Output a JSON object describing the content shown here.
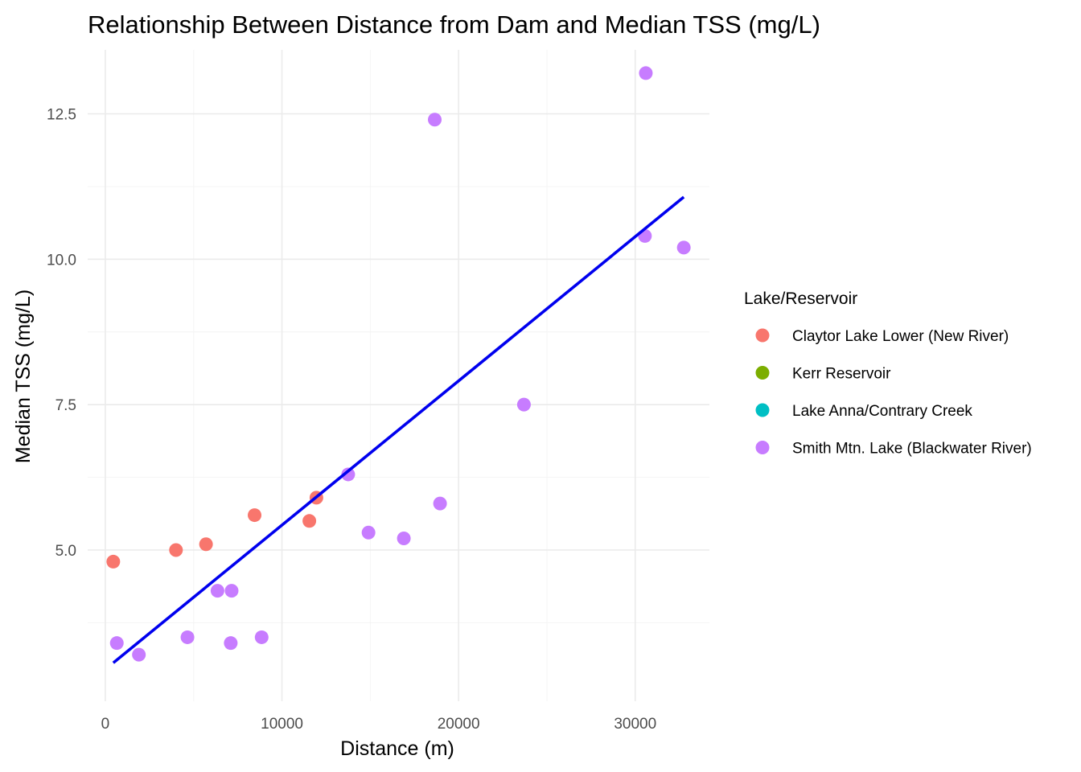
{
  "chart_data": {
    "type": "scatter",
    "title": "Relationship Between Distance from Dam and Median TSS (mg/L)",
    "xlabel": "Distance (m)",
    "ylabel": "Median TSS (mg/L)",
    "xlim": [
      -1000,
      34200
    ],
    "ylim": [
      2.4,
      13.6
    ],
    "x_ticks": [
      0,
      10000,
      20000,
      30000
    ],
    "x_tick_labels": [
      "0",
      "10000",
      "20000",
      "30000"
    ],
    "y_ticks": [
      5.0,
      7.5,
      10.0,
      12.5
    ],
    "y_tick_labels": [
      "5.0",
      "7.5",
      "10.0",
      "12.5"
    ],
    "grid": true,
    "legend": {
      "title": "Lake/Reservoir",
      "position": "right",
      "entries": [
        {
          "label": "Claytor Lake Lower (New River)",
          "color": "#F8766D"
        },
        {
          "label": "Kerr Reservoir",
          "color": "#7CAE00"
        },
        {
          "label": "Lake Anna/Contrary Creek",
          "color": "#00BFC4"
        },
        {
          "label": "Smith Mtn. Lake (Blackwater River)",
          "color": "#C77CFF"
        }
      ]
    },
    "series": [
      {
        "name": "Claytor Lake Lower (New River)",
        "color": "#F8766D",
        "points": [
          {
            "x": 450,
            "y": 4.8
          },
          {
            "x": 4000,
            "y": 5.0
          },
          {
            "x": 5700,
            "y": 5.1
          },
          {
            "x": 8450,
            "y": 5.6
          },
          {
            "x": 11550,
            "y": 5.5
          },
          {
            "x": 11950,
            "y": 5.9
          }
        ]
      },
      {
        "name": "Kerr Reservoir",
        "color": "#7CAE00",
        "points": []
      },
      {
        "name": "Lake Anna/Contrary Creek",
        "color": "#00BFC4",
        "points": []
      },
      {
        "name": "Smith Mtn. Lake (Blackwater River)",
        "color": "#C77CFF",
        "points": [
          {
            "x": 650,
            "y": 3.4
          },
          {
            "x": 1900,
            "y": 3.2
          },
          {
            "x": 4650,
            "y": 3.5
          },
          {
            "x": 6350,
            "y": 4.3
          },
          {
            "x": 7150,
            "y": 4.3
          },
          {
            "x": 7100,
            "y": 3.4
          },
          {
            "x": 8850,
            "y": 3.5
          },
          {
            "x": 13750,
            "y": 6.3
          },
          {
            "x": 14900,
            "y": 5.3
          },
          {
            "x": 16900,
            "y": 5.2
          },
          {
            "x": 18650,
            "y": 12.4
          },
          {
            "x": 18950,
            "y": 5.8
          },
          {
            "x": 23700,
            "y": 7.5
          },
          {
            "x": 30550,
            "y": 10.4
          },
          {
            "x": 30600,
            "y": 13.2
          },
          {
            "x": 32750,
            "y": 10.2
          }
        ]
      }
    ],
    "trend_line": {
      "color": "#0000EE",
      "x": [
        450,
        32750
      ],
      "y": [
        3.06,
        11.07
      ]
    }
  }
}
